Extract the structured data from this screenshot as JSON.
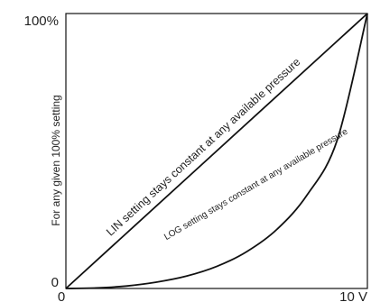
{
  "chart_data": {
    "type": "line",
    "title": "",
    "xlabel": "",
    "ylabel": "For any given 100% setting",
    "x_tick_labels": [
      "0",
      "10 V"
    ],
    "y_tick_labels": [
      "0",
      "100%"
    ],
    "xlim": [
      0,
      10
    ],
    "ylim": [
      0,
      100
    ],
    "grid": false,
    "colors": {
      "line": "#111111",
      "frame": "#111111",
      "text": "#222222"
    },
    "series": [
      {
        "name": "LIN setting stays constant at any available pressure",
        "x": [
          0,
          2,
          4,
          6,
          8,
          10
        ],
        "y": [
          0,
          20,
          40,
          60,
          80,
          100
        ]
      },
      {
        "name": "LOG setting stays constant at any available pressure",
        "x": [
          0,
          1,
          2,
          3,
          4,
          5,
          6,
          7,
          8,
          9,
          10
        ],
        "y": [
          0,
          0.2,
          0.9,
          2.3,
          4.5,
          8,
          13.4,
          21.5,
          34,
          54,
          100
        ]
      }
    ]
  }
}
